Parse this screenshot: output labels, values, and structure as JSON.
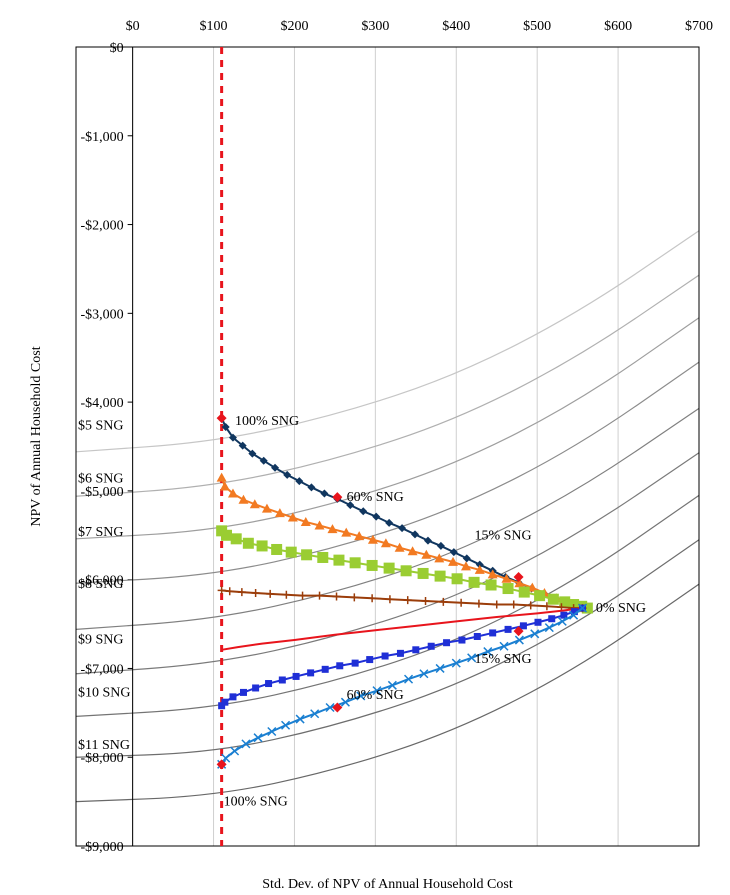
{
  "chart_data": {
    "type": "line",
    "xlabel": "Std. Dev. of NPV of Annual Household Cost",
    "ylabel": "NPV of Annual Household Cost",
    "xlim": [
      -70,
      700
    ],
    "ylim": [
      -9000,
      0
    ],
    "x_ticks": [
      0,
      100,
      200,
      300,
      400,
      500,
      600,
      700
    ],
    "x_tick_labels": [
      "$0",
      "$100",
      "$200",
      "$300",
      "$400",
      "$500",
      "$600",
      "$700"
    ],
    "y_ticks": [
      0,
      -1000,
      -2000,
      -3000,
      -4000,
      -5000,
      -6000,
      -7000,
      -8000,
      -9000
    ],
    "y_tick_labels": [
      "$0",
      "-$1,000",
      "-$2,000",
      "-$3,000",
      "-$4,000",
      "-$5,000",
      "-$6,000",
      "-$7,000",
      "-$8,000",
      "-$9,000"
    ],
    "grid": true,
    "x_axis_position": "top",
    "reference_line_x": 110,
    "reference_line_color": "#e8141c",
    "series": [
      {
        "price_label": "$5 SNG",
        "color": "#10365f",
        "marker": "diamond",
        "x": [
          110,
          115,
          124,
          136,
          148,
          162,
          176,
          191,
          206,
          221,
          237,
          253,
          269,
          285,
          301,
          317,
          333,
          349,
          365,
          381,
          397,
          413,
          429,
          445,
          461,
          477,
          493,
          509,
          524,
          536,
          547,
          556
        ],
        "y": [
          -4180,
          -4280,
          -4400,
          -4490,
          -4580,
          -4660,
          -4740,
          -4820,
          -4890,
          -4960,
          -5030,
          -5090,
          -5160,
          -5230,
          -5290,
          -5360,
          -5420,
          -5490,
          -5560,
          -5620,
          -5690,
          -5760,
          -5830,
          -5900,
          -5970,
          -6030,
          -6100,
          -6160,
          -6220,
          -6260,
          -6290,
          -6310
        ]
      },
      {
        "price_label": "$6 SNG",
        "color": "#f27a22",
        "marker": "triangle",
        "x": [
          110,
          114,
          124,
          137,
          151,
          166,
          182,
          198,
          214,
          231,
          247,
          264,
          280,
          297,
          313,
          330,
          346,
          363,
          379,
          396,
          412,
          429,
          445,
          462,
          478,
          494,
          509,
          524,
          537,
          548,
          556
        ],
        "y": [
          -4850,
          -4950,
          -5030,
          -5100,
          -5150,
          -5200,
          -5250,
          -5300,
          -5350,
          -5390,
          -5430,
          -5470,
          -5510,
          -5550,
          -5590,
          -5640,
          -5680,
          -5720,
          -5760,
          -5800,
          -5850,
          -5890,
          -5940,
          -5990,
          -6040,
          -6090,
          -6150,
          -6210,
          -6260,
          -6300,
          -6320
        ]
      },
      {
        "price_label": "$7 SNG",
        "color": "#9acd32",
        "marker": "square",
        "x": [
          110,
          116,
          128,
          143,
          160,
          178,
          196,
          215,
          235,
          255,
          275,
          296,
          317,
          338,
          359,
          380,
          401,
          422,
          443,
          464,
          484,
          503,
          520,
          534,
          545,
          555,
          562
        ],
        "y": [
          -5450,
          -5500,
          -5540,
          -5590,
          -5620,
          -5660,
          -5690,
          -5720,
          -5750,
          -5780,
          -5810,
          -5840,
          -5870,
          -5900,
          -5930,
          -5960,
          -5990,
          -6030,
          -6060,
          -6100,
          -6140,
          -6180,
          -6220,
          -6250,
          -6280,
          -6300,
          -6320
        ]
      },
      {
        "price_label": "$8 SNG",
        "color": "#9b3d0a",
        "marker": "plus",
        "x": [
          110,
          120,
          135,
          152,
          170,
          190,
          210,
          231,
          252,
          274,
          296,
          318,
          340,
          362,
          384,
          406,
          428,
          450,
          471,
          492,
          512,
          530,
          545,
          556
        ],
        "y": [
          -6120,
          -6130,
          -6140,
          -6150,
          -6160,
          -6170,
          -6180,
          -6180,
          -6190,
          -6200,
          -6210,
          -6220,
          -6230,
          -6240,
          -6250,
          -6260,
          -6270,
          -6280,
          -6280,
          -6290,
          -6300,
          -6310,
          -6320,
          -6320
        ]
      },
      {
        "price_label": "$9 SNG",
        "color": "#e8141c",
        "marker": "none",
        "x": [
          110,
          130,
          160,
          200,
          250,
          300,
          350,
          400,
          450,
          500,
          530,
          556
        ],
        "y": [
          -6790,
          -6760,
          -6720,
          -6680,
          -6620,
          -6570,
          -6520,
          -6470,
          -6420,
          -6380,
          -6350,
          -6320
        ]
      },
      {
        "price_label": "$10 SNG",
        "color": "#1f2fd6",
        "marker": "square",
        "x": [
          110,
          114,
          124,
          137,
          152,
          168,
          185,
          202,
          220,
          238,
          256,
          275,
          293,
          312,
          331,
          350,
          369,
          388,
          407,
          426,
          445,
          464,
          483,
          501,
          518,
          533,
          546,
          556
        ],
        "y": [
          -7420,
          -7380,
          -7320,
          -7270,
          -7220,
          -7170,
          -7130,
          -7090,
          -7050,
          -7010,
          -6970,
          -6940,
          -6900,
          -6860,
          -6830,
          -6790,
          -6750,
          -6710,
          -6680,
          -6640,
          -6600,
          -6560,
          -6520,
          -6480,
          -6440,
          -6400,
          -6360,
          -6320
        ]
      },
      {
        "price_label": "$11 SNG",
        "color": "#1a7fd1",
        "marker": "x",
        "x": [
          110,
          115,
          126,
          140,
          155,
          172,
          189,
          207,
          225,
          244,
          263,
          282,
          302,
          321,
          341,
          360,
          380,
          400,
          419,
          439,
          459,
          478,
          497,
          515,
          531,
          545,
          556
        ],
        "y": [
          -8080,
          -8010,
          -7930,
          -7850,
          -7780,
          -7710,
          -7640,
          -7570,
          -7510,
          -7440,
          -7380,
          -7310,
          -7250,
          -7190,
          -7120,
          -7060,
          -7000,
          -6940,
          -6880,
          -6810,
          -6750,
          -6680,
          -6610,
          -6540,
          -6470,
          -6400,
          -6320
        ]
      }
    ],
    "share_points": [
      {
        "x": 110,
        "y": -4180,
        "label": "100% SNG"
      },
      {
        "x": 253,
        "y": -5070,
        "label": "60% SNG"
      },
      {
        "x": 477,
        "y": -5970,
        "label": "15% SNG"
      },
      {
        "x": 110,
        "y": -8080,
        "label": "100% SNG"
      },
      {
        "x": 253,
        "y": -7440,
        "label": "60% SNG"
      },
      {
        "x": 477,
        "y": -6580,
        "label": "15% SNG"
      }
    ],
    "iso_curves": [
      {
        "x": [
          -70,
          100,
          250,
          400,
          550,
          700
        ],
        "y": [
          -4560,
          -4450,
          -4150,
          -3700,
          -3000,
          -2070
        ],
        "color": "#c6c6c6"
      },
      {
        "x": [
          -70,
          100,
          250,
          400,
          550,
          700
        ],
        "y": [
          -5060,
          -4950,
          -4650,
          -4200,
          -3500,
          -2570
        ],
        "color": "#b0b0b0"
      },
      {
        "x": [
          -70,
          100,
          250,
          400,
          550,
          700
        ],
        "y": [
          -5540,
          -5450,
          -5150,
          -4700,
          -4000,
          -3050
        ],
        "color": "#9e9e9e"
      },
      {
        "x": [
          -70,
          100,
          250,
          400,
          550,
          700
        ],
        "y": [
          -6040,
          -5950,
          -5650,
          -5200,
          -4500,
          -3550
        ],
        "color": "#8c8c8c"
      },
      {
        "x": [
          -70,
          100,
          250,
          400,
          550,
          700
        ],
        "y": [
          -6560,
          -6450,
          -6150,
          -5700,
          -5000,
          -4070
        ],
        "color": "#808080"
      },
      {
        "x": [
          -70,
          100,
          250,
          400,
          550,
          700
        ],
        "y": [
          -7060,
          -6950,
          -6650,
          -6200,
          -5500,
          -4570
        ],
        "color": "#7a7a7a"
      },
      {
        "x": [
          -70,
          100,
          250,
          400,
          550,
          700
        ],
        "y": [
          -7540,
          -7450,
          -7150,
          -6700,
          -6000,
          -5050
        ],
        "color": "#747474"
      },
      {
        "x": [
          -70,
          100,
          250,
          400,
          550,
          700
        ],
        "y": [
          -8000,
          -7950,
          -7650,
          -7200,
          -6500,
          -5550
        ],
        "color": "#6e6e6e"
      },
      {
        "x": [
          -70,
          100,
          250,
          400,
          550,
          700
        ],
        "y": [
          -8500,
          -8440,
          -8150,
          -7700,
          -7000,
          -6050
        ],
        "color": "#686868"
      }
    ],
    "annotations": [
      {
        "text": "$5 SNG",
        "x": -70,
        "y": -4250
      },
      {
        "text": "$6 SNG",
        "x": -70,
        "y": -4850
      },
      {
        "text": "$7 SNG",
        "x": -70,
        "y": -5450
      },
      {
        "text": "$8 SNG",
        "x": -70,
        "y": -6040
      },
      {
        "text": "$9 SNG",
        "x": -70,
        "y": -6660
      },
      {
        "text": "$10 SNG",
        "x": -70,
        "y": -7260
      },
      {
        "text": "$11 SNG",
        "x": -70,
        "y": -7850
      },
      {
        "text": "100% SNG",
        "x": 124,
        "y": -4200
      },
      {
        "text": "60% SNG",
        "x": 262,
        "y": -5060
      },
      {
        "text": "15% SNG",
        "x": 420,
        "y": -5490
      },
      {
        "text": "0% SNG",
        "x": 570,
        "y": -6310
      },
      {
        "text": "15% SNG",
        "x": 420,
        "y": -6880
      },
      {
        "text": "60% SNG",
        "x": 262,
        "y": -7290
      },
      {
        "text": "100% SNG",
        "x": 110,
        "y": -8490
      }
    ]
  }
}
